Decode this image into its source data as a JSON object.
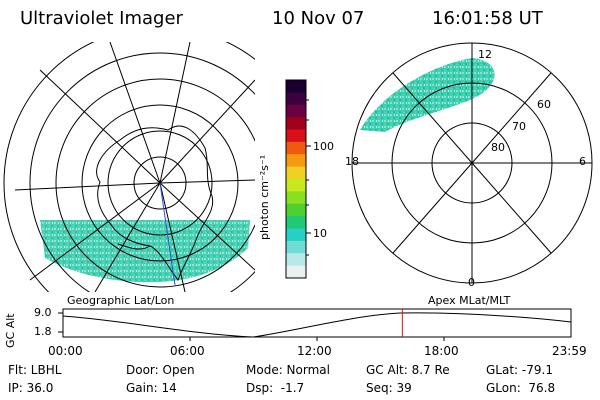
{
  "header": {
    "instrument": "Ultraviolet Imager",
    "date": "10 Nov 07",
    "time": "16:01:58 UT"
  },
  "colorbar": {
    "label": "photon cm⁻²s⁻¹",
    "ticks": [
      "100",
      "10"
    ],
    "colors": [
      "#1a0030",
      "#3a003f",
      "#6a0044",
      "#a0001a",
      "#d8101a",
      "#f05a10",
      "#f59a10",
      "#f0d020",
      "#c8e81e",
      "#88e020",
      "#50d030",
      "#20c878",
      "#26d0c4",
      "#70dcd8",
      "#b8e8e8",
      "#e8f0f0"
    ]
  },
  "left_map": {
    "label": "Geographic Lat/Lon"
  },
  "right_map": {
    "label": "Apex MLat/MLT",
    "mlt_labels": {
      "top": "12",
      "left": "18",
      "right": "6",
      "bottom": "0"
    },
    "lat_labels": [
      "60",
      "70",
      "80"
    ]
  },
  "timeline": {
    "ylabel": "GC Alt",
    "yticks": [
      "9.0",
      "1.8"
    ],
    "xticks": [
      "00:00",
      "06:00",
      "12:00",
      "18:00",
      "23:59"
    ],
    "current_time_fraction": 0.668
  },
  "info": {
    "col1": [
      "Flt: LBHL",
      "IP: 36.0"
    ],
    "col2": [
      "Door: Open",
      "Gain: 14"
    ],
    "col3": [
      "Mode: Normal",
      "Dsp:  -1.7"
    ],
    "col4": [
      "GC Alt: 8.7 Re",
      "Seq: 39"
    ],
    "col5": [
      "GLat: -79.1",
      "GLon:  76.8"
    ]
  }
}
